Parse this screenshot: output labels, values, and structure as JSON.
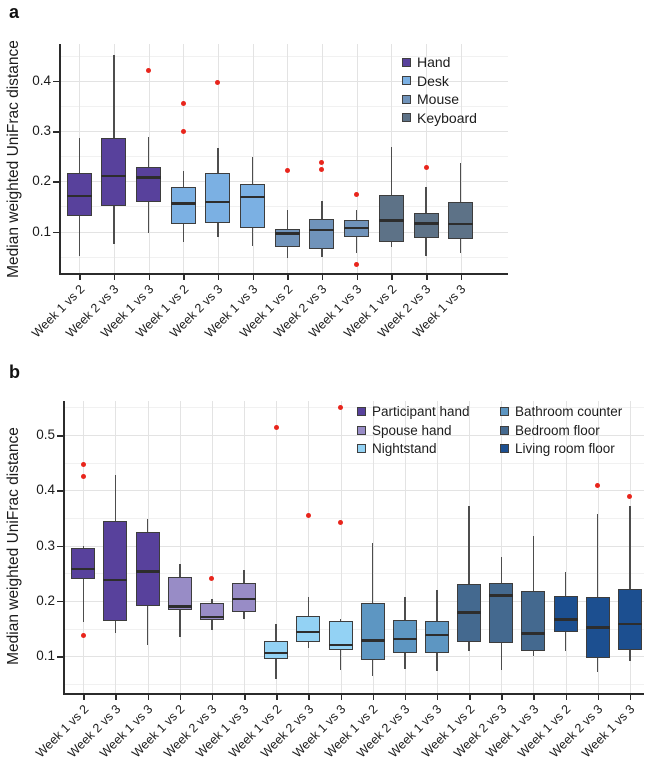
{
  "figure": {
    "background": "#ffffff",
    "colors": {
      "outlier": "#e8251c",
      "box_border": "#3d3d3d",
      "median_line": "#2d2d2d",
      "whisker": "#4d4d4d",
      "grid_major": "#e3e3e3",
      "grid_minor": "#f1f1f1",
      "spine": "#2b2b2b",
      "tick": "#2b2b2b",
      "text": "#1c1c1c"
    }
  },
  "chart_data": [
    {
      "type": "boxplot",
      "panel_letter": "a",
      "ylabel": "Median weighted UniFrac distance",
      "yticks": [
        0.1,
        0.2,
        0.3,
        0.4
      ],
      "ytick_labels": [
        "0.1",
        "0.2",
        "0.3",
        "0.4"
      ],
      "minor_yticks": [
        0.05,
        0.15,
        0.25,
        0.35,
        0.45
      ],
      "ylim": [
        0.018,
        0.472
      ],
      "grid": true,
      "legend_position": "top-right-inside",
      "legend": [
        {
          "label": "Hand",
          "color": "#58419c"
        },
        {
          "label": "Desk",
          "color": "#7bb0e3"
        },
        {
          "label": "Mouse",
          "color": "#7093ba"
        },
        {
          "label": "Keyboard",
          "color": "#5d7287"
        }
      ],
      "boxes": [
        {
          "group": "Hand",
          "label": "Week 1 vs 2",
          "whisker_low": 0.051,
          "q1": 0.131,
          "median": 0.171,
          "q3": 0.216,
          "whisker_high": 0.287,
          "outliers": []
        },
        {
          "group": "Hand",
          "label": "Week 2 vs 3",
          "whisker_low": 0.075,
          "q1": 0.15,
          "median": 0.211,
          "q3": 0.287,
          "whisker_high": 0.451,
          "outliers": []
        },
        {
          "group": "Hand",
          "label": "Week 1 vs 3",
          "whisker_low": 0.098,
          "q1": 0.159,
          "median": 0.208,
          "q3": 0.229,
          "whisker_high": 0.289,
          "outliers": [
            0.42
          ]
        },
        {
          "group": "Desk",
          "label": "Week 1 vs 2",
          "whisker_low": 0.08,
          "q1": 0.115,
          "median": 0.156,
          "q3": 0.188,
          "whisker_high": 0.221,
          "outliers": [
            0.354,
            0.3
          ]
        },
        {
          "group": "Desk",
          "label": "Week 2 vs 3",
          "whisker_low": 0.089,
          "q1": 0.118,
          "median": 0.159,
          "q3": 0.216,
          "whisker_high": 0.266,
          "outliers": [
            0.396
          ]
        },
        {
          "group": "Desk",
          "label": "Week 1 vs 3",
          "whisker_low": 0.071,
          "q1": 0.108,
          "median": 0.169,
          "q3": 0.194,
          "whisker_high": 0.249,
          "outliers": []
        },
        {
          "group": "Mouse",
          "label": "Week 1 vs 2",
          "whisker_low": 0.047,
          "q1": 0.069,
          "median": 0.096,
          "q3": 0.106,
          "whisker_high": 0.142,
          "outliers": [
            0.221
          ]
        },
        {
          "group": "Mouse",
          "label": "Week 2 vs 3",
          "whisker_low": 0.05,
          "q1": 0.065,
          "median": 0.103,
          "q3": 0.125,
          "whisker_high": 0.16,
          "outliers": [
            0.238,
            0.224
          ]
        },
        {
          "group": "Mouse",
          "label": "Week 1 vs 3",
          "whisker_low": 0.058,
          "q1": 0.089,
          "median": 0.107,
          "q3": 0.123,
          "whisker_high": 0.142,
          "outliers": [
            0.174,
            0.035
          ]
        },
        {
          "group": "Keyboard",
          "label": "Week 1 vs 2",
          "whisker_low": 0.07,
          "q1": 0.08,
          "median": 0.122,
          "q3": 0.172,
          "whisker_high": 0.269,
          "outliers": []
        },
        {
          "group": "Keyboard",
          "label": "Week 2 vs 3",
          "whisker_low": 0.052,
          "q1": 0.087,
          "median": 0.116,
          "q3": 0.137,
          "whisker_high": 0.189,
          "outliers": [
            0.228
          ]
        },
        {
          "group": "Keyboard",
          "label": "Week 1 vs 3",
          "whisker_low": 0.058,
          "q1": 0.085,
          "median": 0.115,
          "q3": 0.158,
          "whisker_high": 0.236,
          "outliers": []
        }
      ]
    },
    {
      "type": "boxplot",
      "panel_letter": "b",
      "ylabel": "Median weighted UniFrac distance",
      "yticks": [
        0.1,
        0.2,
        0.3,
        0.4,
        0.5
      ],
      "ytick_labels": [
        "0.1",
        "0.2",
        "0.3",
        "0.4",
        "0.5"
      ],
      "minor_yticks": [
        0.05,
        0.15,
        0.25,
        0.35,
        0.45,
        0.55
      ],
      "ylim": [
        0.02,
        0.56
      ],
      "grid": true,
      "legend_position": "top-right-inside-two-columns",
      "legend": [
        {
          "label": "Participant hand",
          "color": "#58419c"
        },
        {
          "label": "Spouse hand",
          "color": "#988cc6"
        },
        {
          "label": "Nightstand",
          "color": "#93d2f4"
        },
        {
          "label": "Bathroom counter",
          "color": "#5d96c2"
        },
        {
          "label": "Bedroom floor",
          "color": "#44698f"
        },
        {
          "label": "Living room floor",
          "color": "#1c4f90"
        }
      ],
      "boxes": [
        {
          "group": "Participant hand",
          "label": "Week 1 vs 2",
          "whisker_low": 0.162,
          "q1": 0.239,
          "median": 0.258,
          "q3": 0.295,
          "whisker_high": 0.3,
          "outliers": [
            0.447,
            0.425,
            0.137
          ]
        },
        {
          "group": "Participant hand",
          "label": "Week 2 vs 3",
          "whisker_low": 0.142,
          "q1": 0.163,
          "median": 0.238,
          "q3": 0.345,
          "whisker_high": 0.428,
          "outliers": []
        },
        {
          "group": "Participant hand",
          "label": "Week 1 vs 3",
          "whisker_low": 0.121,
          "q1": 0.191,
          "median": 0.253,
          "q3": 0.324,
          "whisker_high": 0.348,
          "outliers": []
        },
        {
          "group": "Spouse hand",
          "label": "Week 1 vs 2",
          "whisker_low": 0.135,
          "q1": 0.183,
          "median": 0.19,
          "q3": 0.244,
          "whisker_high": 0.267,
          "outliers": []
        },
        {
          "group": "Spouse hand",
          "label": "Week 2 vs 3",
          "whisker_low": 0.147,
          "q1": 0.166,
          "median": 0.171,
          "q3": 0.197,
          "whisker_high": 0.203,
          "outliers": [
            0.241
          ]
        },
        {
          "group": "Spouse hand",
          "label": "Week 1 vs 3",
          "whisker_low": 0.167,
          "q1": 0.18,
          "median": 0.203,
          "q3": 0.232,
          "whisker_high": 0.255,
          "outliers": []
        },
        {
          "group": "Nightstand",
          "label": "Week 1 vs 2",
          "whisker_low": 0.058,
          "q1": 0.095,
          "median": 0.106,
          "q3": 0.127,
          "whisker_high": 0.158,
          "outliers": [
            0.514
          ]
        },
        {
          "group": "Nightstand",
          "label": "Week 2 vs 3",
          "whisker_low": 0.115,
          "q1": 0.126,
          "median": 0.144,
          "q3": 0.172,
          "whisker_high": 0.207,
          "outliers": [
            0.355
          ]
        },
        {
          "group": "Nightstand",
          "label": "Week 1 vs 3",
          "whisker_low": 0.075,
          "q1": 0.111,
          "median": 0.12,
          "q3": 0.163,
          "whisker_high": 0.167,
          "outliers": [
            0.549,
            0.341
          ]
        },
        {
          "group": "Bathroom counter",
          "label": "Week 1 vs 2",
          "whisker_low": 0.065,
          "q1": 0.093,
          "median": 0.128,
          "q3": 0.197,
          "whisker_high": 0.304,
          "outliers": []
        },
        {
          "group": "Bathroom counter",
          "label": "Week 2 vs 3",
          "whisker_low": 0.077,
          "q1": 0.106,
          "median": 0.131,
          "q3": 0.166,
          "whisker_high": 0.207,
          "outliers": []
        },
        {
          "group": "Bathroom counter",
          "label": "Week 1 vs 3",
          "whisker_low": 0.073,
          "q1": 0.106,
          "median": 0.138,
          "q3": 0.164,
          "whisker_high": 0.22,
          "outliers": []
        },
        {
          "group": "Bedroom floor",
          "label": "Week 1 vs 2",
          "whisker_low": 0.109,
          "q1": 0.125,
          "median": 0.179,
          "q3": 0.23,
          "whisker_high": 0.371,
          "outliers": []
        },
        {
          "group": "Bedroom floor",
          "label": "Week 2 vs 3",
          "whisker_low": 0.075,
          "q1": 0.124,
          "median": 0.21,
          "q3": 0.232,
          "whisker_high": 0.279,
          "outliers": []
        },
        {
          "group": "Bedroom floor",
          "label": "Week 1 vs 3",
          "whisker_low": 0.101,
          "q1": 0.109,
          "median": 0.141,
          "q3": 0.218,
          "whisker_high": 0.318,
          "outliers": []
        },
        {
          "group": "Living room floor",
          "label": "Week 1 vs 2",
          "whisker_low": 0.109,
          "q1": 0.144,
          "median": 0.166,
          "q3": 0.209,
          "whisker_high": 0.253,
          "outliers": []
        },
        {
          "group": "Living room floor",
          "label": "Week 2 vs 3",
          "whisker_low": 0.072,
          "q1": 0.097,
          "median": 0.152,
          "q3": 0.207,
          "whisker_high": 0.357,
          "outliers": [
            0.408
          ]
        },
        {
          "group": "Living room floor",
          "label": "Week 1 vs 3",
          "whisker_low": 0.091,
          "q1": 0.112,
          "median": 0.158,
          "q3": 0.221,
          "whisker_high": 0.372,
          "outliers": [
            0.389
          ]
        }
      ]
    }
  ]
}
